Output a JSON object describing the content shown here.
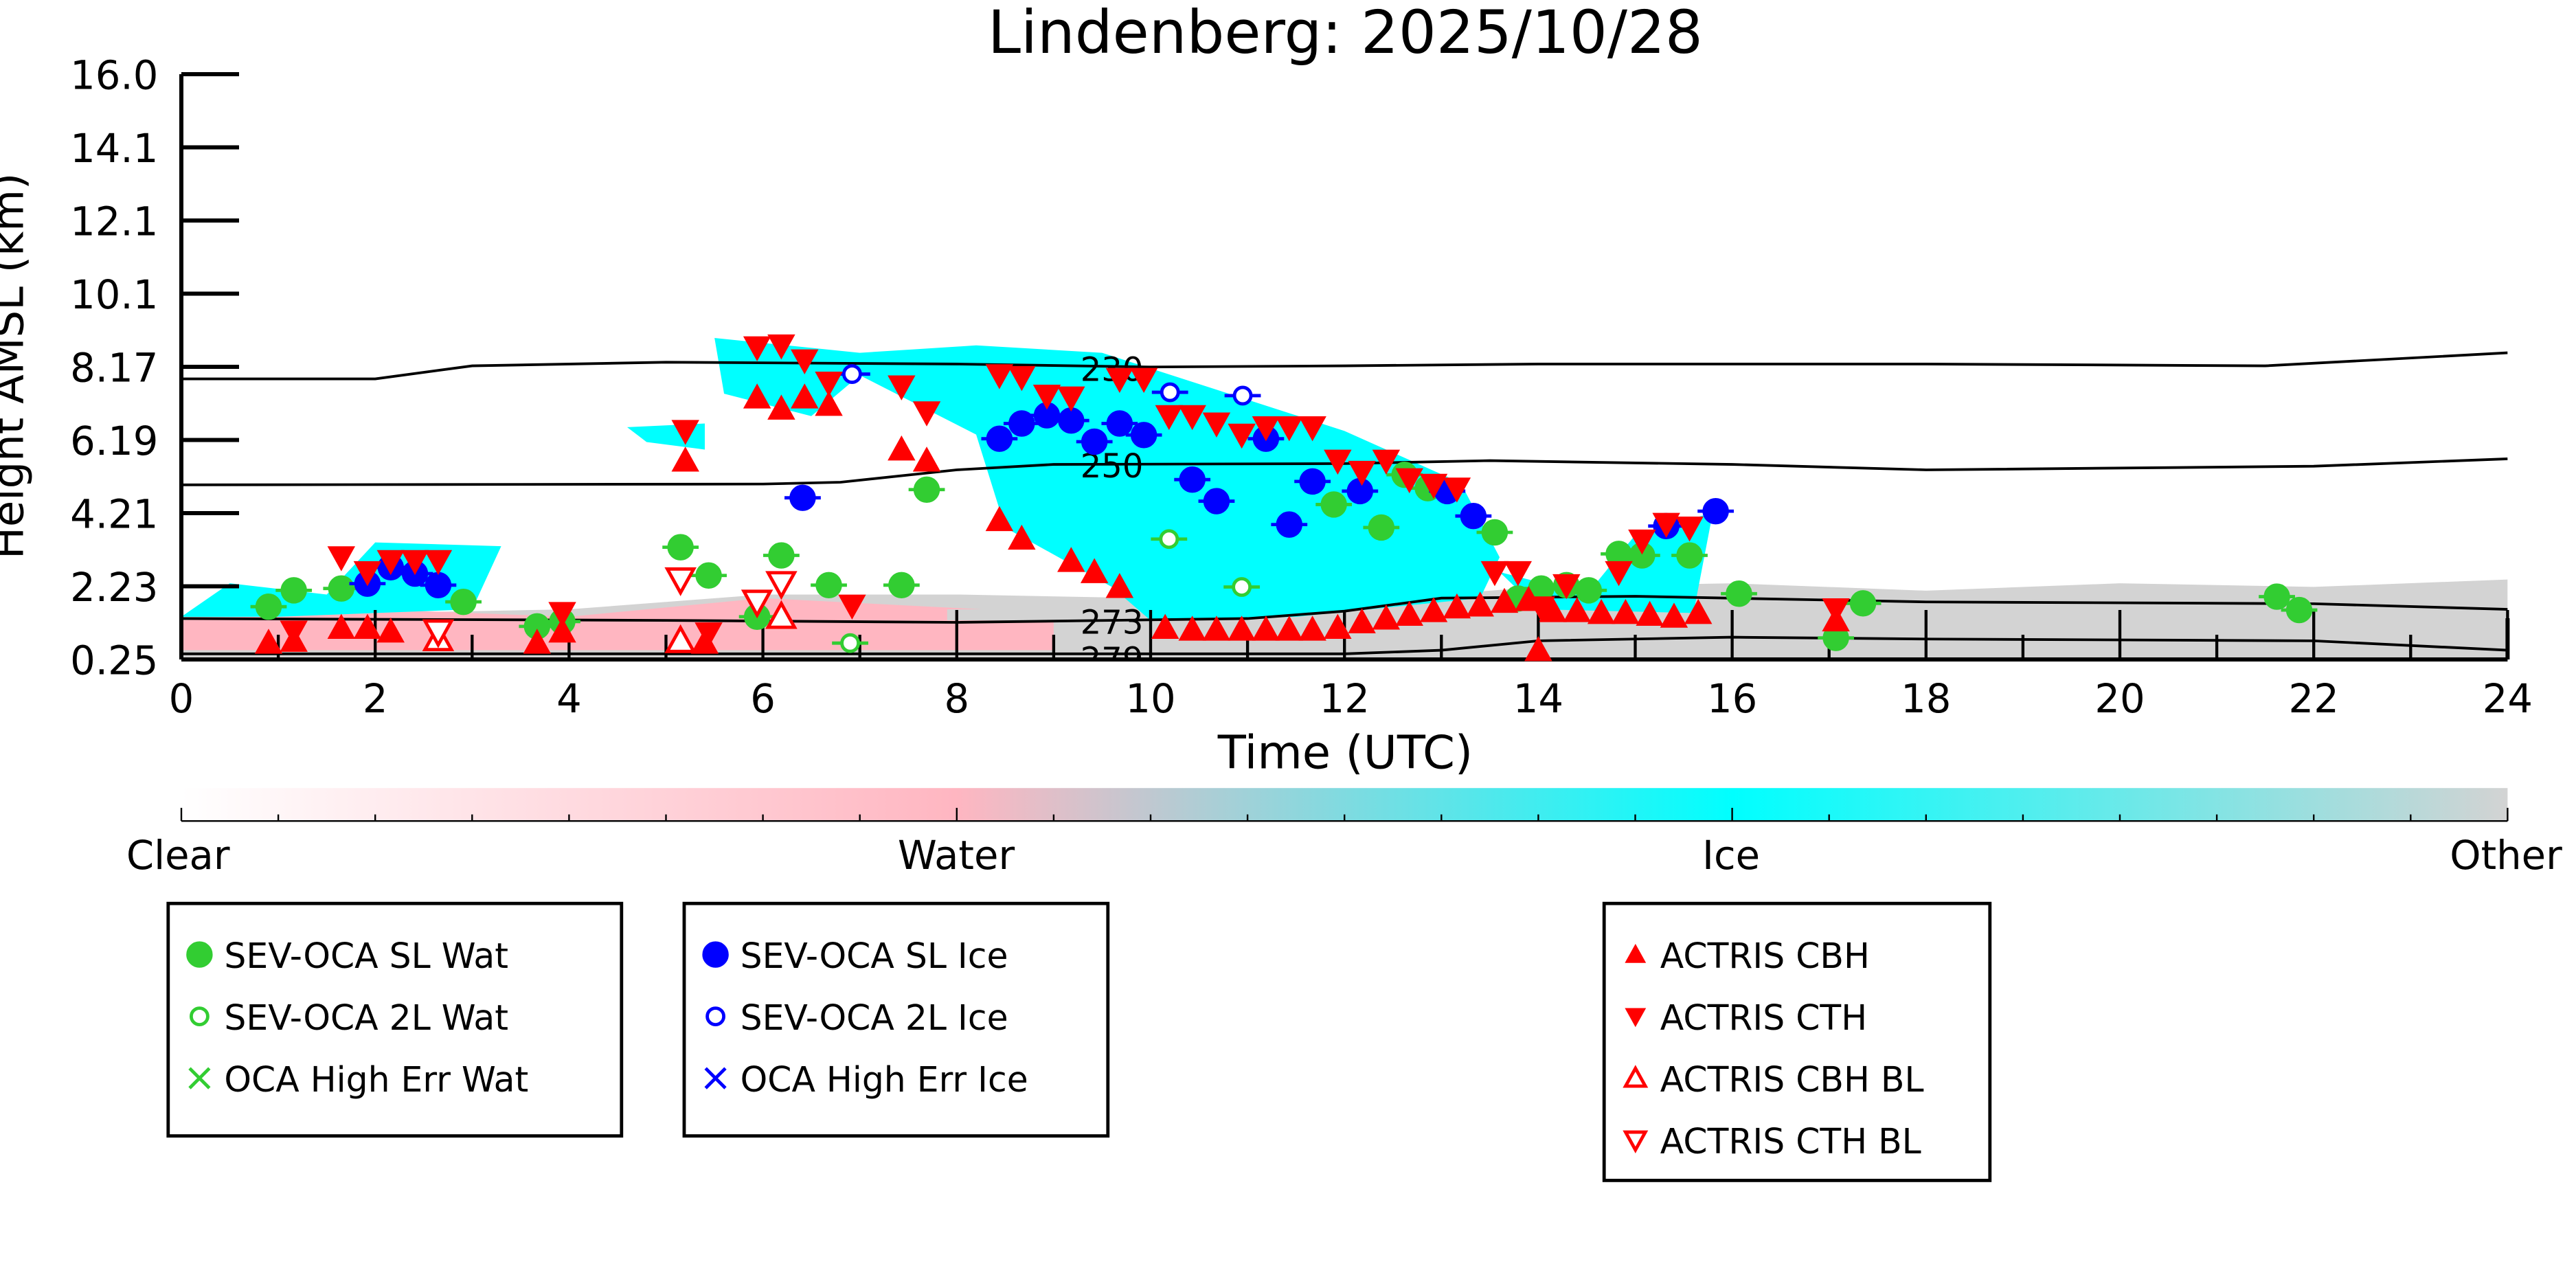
{
  "chart_data": {
    "type": "scatter",
    "title": "Lindenberg: 2025/10/28",
    "xlabel": "Time (UTC)",
    "ylabel": "Height AMSL (km)",
    "xlim": [
      0,
      24
    ],
    "ylim": [
      0.25,
      16.0
    ],
    "xticks": [
      "0",
      "2",
      "4",
      "6",
      "8",
      "10",
      "12",
      "14",
      "16",
      "18",
      "20",
      "22",
      "24"
    ],
    "yticks": [
      "0.25",
      "2.23",
      "4.21",
      "6.19",
      "8.17",
      "10.1",
      "12.1",
      "14.1",
      "16.0"
    ],
    "colorbar": {
      "labels": [
        "Clear",
        "Water",
        "Ice",
        "Other"
      ],
      "colors": [
        "#ffffff",
        "#ffb6c1",
        "#00ffff",
        "#d3d3d3"
      ]
    },
    "contours": [
      {
        "label": "230",
        "points": [
          [
            0,
            7.8
          ],
          [
            2,
            7.8
          ],
          [
            3,
            8.15
          ],
          [
            5,
            8.25
          ],
          [
            8,
            8.2
          ],
          [
            10,
            8.12
          ],
          [
            12,
            8.15
          ],
          [
            14,
            8.2
          ],
          [
            18,
            8.2
          ],
          [
            21.5,
            8.15
          ],
          [
            24,
            8.5
          ]
        ]
      },
      {
        "label": "250",
        "points": [
          [
            0,
            4.95
          ],
          [
            6,
            4.97
          ],
          [
            6.8,
            5.02
          ],
          [
            8,
            5.35
          ],
          [
            9,
            5.5
          ],
          [
            12,
            5.52
          ],
          [
            13.5,
            5.6
          ],
          [
            16,
            5.5
          ],
          [
            18,
            5.35
          ],
          [
            22,
            5.45
          ],
          [
            24,
            5.65
          ]
        ]
      },
      {
        "label": "273",
        "points": [
          [
            0,
            1.35
          ],
          [
            5,
            1.3
          ],
          [
            8,
            1.25
          ],
          [
            11,
            1.35
          ],
          [
            12,
            1.55
          ],
          [
            13,
            1.9
          ],
          [
            15,
            1.95
          ],
          [
            18,
            1.8
          ],
          [
            22,
            1.75
          ],
          [
            24,
            1.6
          ]
        ]
      },
      {
        "label": "279",
        "points": [
          [
            0,
            0.4
          ],
          [
            12,
            0.4
          ],
          [
            13,
            0.5
          ],
          [
            14,
            0.75
          ],
          [
            16,
            0.85
          ],
          [
            18,
            0.8
          ],
          [
            22,
            0.75
          ],
          [
            24,
            0.5
          ]
        ]
      }
    ],
    "series": [
      {
        "name": "SEV-OCA SL Wat",
        "color": "#32cd32",
        "marker": "filled-circle",
        "points": [
          [
            0.9,
            1.67
          ],
          [
            1.16,
            2.11
          ],
          [
            1.65,
            2.16
          ],
          [
            2.91,
            1.8
          ],
          [
            3.67,
            1.14
          ],
          [
            3.93,
            1.27
          ],
          [
            5.15,
            3.27
          ],
          [
            5.44,
            2.51
          ],
          [
            5.94,
            1.4
          ],
          [
            6.19,
            3.05
          ],
          [
            6.68,
            2.25
          ],
          [
            7.43,
            2.25
          ],
          [
            7.69,
            4.82
          ],
          [
            11.89,
            4.42
          ],
          [
            12.38,
            3.8
          ],
          [
            12.62,
            5.22
          ],
          [
            12.86,
            4.86
          ],
          [
            13.55,
            3.67
          ],
          [
            13.79,
            1.89
          ],
          [
            14.03,
            2.16
          ],
          [
            14.29,
            2.25
          ],
          [
            14.52,
            2.11
          ],
          [
            14.83,
            3.09
          ],
          [
            15.07,
            3.05
          ],
          [
            15.56,
            3.05
          ],
          [
            16.07,
            2.02
          ],
          [
            17.07,
            0.83
          ],
          [
            17.35,
            1.76
          ],
          [
            21.62,
            1.94
          ],
          [
            21.85,
            1.58
          ]
        ]
      },
      {
        "name": "SEV-OCA 2L Wat",
        "color": "#32cd32",
        "marker": "open-circle",
        "points": [
          [
            6.9,
            0.69
          ],
          [
            10.19,
            3.49
          ],
          [
            10.94,
            2.2
          ]
        ]
      },
      {
        "name": "OCA High Err Wat",
        "color": "#32cd32",
        "marker": "x",
        "points": []
      },
      {
        "name": "SEV-OCA SL Ice",
        "color": "#0000ff",
        "marker": "filled-circle",
        "points": [
          [
            1.92,
            2.29
          ],
          [
            2.16,
            2.73
          ],
          [
            2.41,
            2.56
          ],
          [
            2.65,
            2.25
          ],
          [
            6.41,
            4.6
          ],
          [
            8.44,
            6.19
          ],
          [
            8.67,
            6.6
          ],
          [
            8.93,
            6.82
          ],
          [
            9.18,
            6.68
          ],
          [
            9.42,
            6.11
          ],
          [
            9.68,
            6.6
          ],
          [
            9.93,
            6.29
          ],
          [
            10.43,
            5.09
          ],
          [
            10.68,
            4.51
          ],
          [
            11.19,
            6.19
          ],
          [
            11.43,
            3.88
          ],
          [
            11.67,
            5.04
          ],
          [
            12.16,
            4.78
          ],
          [
            13.06,
            4.78
          ],
          [
            13.33,
            4.11
          ],
          [
            15.32,
            3.84
          ],
          [
            15.83,
            4.24
          ]
        ]
      },
      {
        "name": "SEV-OCA 2L Ice",
        "color": "#0000ff",
        "marker": "open-circle",
        "points": [
          [
            6.92,
            7.93
          ],
          [
            10.2,
            7.44
          ],
          [
            10.95,
            7.35
          ]
        ]
      },
      {
        "name": "OCA High Err Ice",
        "color": "#0000ff",
        "marker": "x",
        "points": []
      },
      {
        "name": "ACTRIS CBH",
        "color": "#ff0000",
        "marker": "triangle-up",
        "points": [
          [
            0.9,
            0.7
          ],
          [
            1.16,
            0.75
          ],
          [
            1.65,
            1.1
          ],
          [
            1.92,
            1.1
          ],
          [
            2.16,
            1.0
          ],
          [
            2.65,
            0.85
          ],
          [
            3.67,
            0.7
          ],
          [
            3.93,
            1.0
          ],
          [
            5.4,
            0.7
          ],
          [
            5.2,
            5.6
          ],
          [
            5.94,
            7.3
          ],
          [
            6.19,
            7.0
          ],
          [
            6.43,
            7.3
          ],
          [
            6.68,
            7.1
          ],
          [
            7.43,
            5.9
          ],
          [
            7.69,
            5.6
          ],
          [
            8.44,
            4.0
          ],
          [
            8.67,
            3.5
          ],
          [
            9.18,
            2.9
          ],
          [
            9.42,
            2.6
          ],
          [
            9.68,
            2.2
          ],
          [
            10.15,
            1.1
          ],
          [
            10.43,
            1.05
          ],
          [
            10.68,
            1.05
          ],
          [
            10.94,
            1.05
          ],
          [
            11.19,
            1.05
          ],
          [
            11.43,
            1.05
          ],
          [
            11.67,
            1.05
          ],
          [
            11.93,
            1.1
          ],
          [
            12.18,
            1.25
          ],
          [
            12.43,
            1.35
          ],
          [
            12.67,
            1.45
          ],
          [
            12.92,
            1.55
          ],
          [
            13.16,
            1.65
          ],
          [
            13.4,
            1.7
          ],
          [
            13.65,
            1.8
          ],
          [
            13.9,
            1.85
          ],
          [
            14.15,
            1.55
          ],
          [
            14.4,
            1.55
          ],
          [
            14.65,
            1.5
          ],
          [
            14.9,
            1.5
          ],
          [
            15.15,
            1.45
          ],
          [
            15.4,
            1.4
          ],
          [
            15.65,
            1.5
          ],
          [
            17.07,
            1.3
          ],
          [
            14.0,
            0.5
          ]
        ]
      },
      {
        "name": "ACTRIS CTH",
        "color": "#ff0000",
        "marker": "triangle-down",
        "points": [
          [
            1.16,
            1.0
          ],
          [
            1.65,
            3.0
          ],
          [
            1.92,
            2.6
          ],
          [
            2.16,
            2.9
          ],
          [
            2.41,
            2.9
          ],
          [
            2.65,
            2.9
          ],
          [
            3.93,
            1.5
          ],
          [
            5.2,
            6.4
          ],
          [
            5.44,
            0.95
          ],
          [
            5.94,
            8.65
          ],
          [
            6.19,
            8.7
          ],
          [
            6.43,
            8.3
          ],
          [
            6.68,
            7.7
          ],
          [
            6.92,
            1.7
          ],
          [
            7.43,
            7.6
          ],
          [
            7.69,
            6.9
          ],
          [
            8.44,
            7.9
          ],
          [
            8.67,
            7.85
          ],
          [
            8.93,
            7.35
          ],
          [
            9.18,
            7.3
          ],
          [
            9.68,
            7.8
          ],
          [
            9.93,
            7.8
          ],
          [
            10.19,
            6.8
          ],
          [
            10.43,
            6.8
          ],
          [
            10.68,
            6.6
          ],
          [
            10.94,
            6.3
          ],
          [
            11.19,
            6.5
          ],
          [
            11.43,
            6.5
          ],
          [
            11.67,
            6.5
          ],
          [
            11.93,
            5.6
          ],
          [
            12.18,
            5.3
          ],
          [
            12.43,
            5.6
          ],
          [
            12.67,
            5.1
          ],
          [
            12.92,
            4.95
          ],
          [
            13.16,
            4.85
          ],
          [
            13.55,
            2.6
          ],
          [
            13.79,
            2.6
          ],
          [
            14.03,
            1.65
          ],
          [
            14.29,
            2.25
          ],
          [
            14.83,
            2.6
          ],
          [
            15.07,
            3.45
          ],
          [
            15.32,
            3.9
          ],
          [
            15.56,
            3.8
          ],
          [
            17.07,
            1.6
          ]
        ]
      },
      {
        "name": "ACTRIS CBH BL",
        "color": "#ff0000",
        "marker": "open-triangle-up",
        "points": [
          [
            2.65,
            0.8
          ],
          [
            5.15,
            0.75
          ],
          [
            6.19,
            1.4
          ]
        ]
      },
      {
        "name": "ACTRIS CTH BL",
        "color": "#ff0000",
        "marker": "open-triangle-down",
        "points": [
          [
            2.65,
            1.0
          ],
          [
            5.15,
            2.4
          ],
          [
            5.94,
            1.8
          ],
          [
            6.19,
            2.3
          ]
        ]
      }
    ]
  },
  "legend_groups": [
    [
      "SEV-OCA SL Wat",
      "SEV-OCA 2L Wat",
      "OCA High Err Wat"
    ],
    [
      "SEV-OCA SL Ice",
      "SEV-OCA 2L Ice",
      "OCA High Err Ice"
    ],
    [
      "ACTRIS CBH",
      "ACTRIS CTH",
      "ACTRIS CBH BL",
      "ACTRIS CTH BL"
    ]
  ]
}
